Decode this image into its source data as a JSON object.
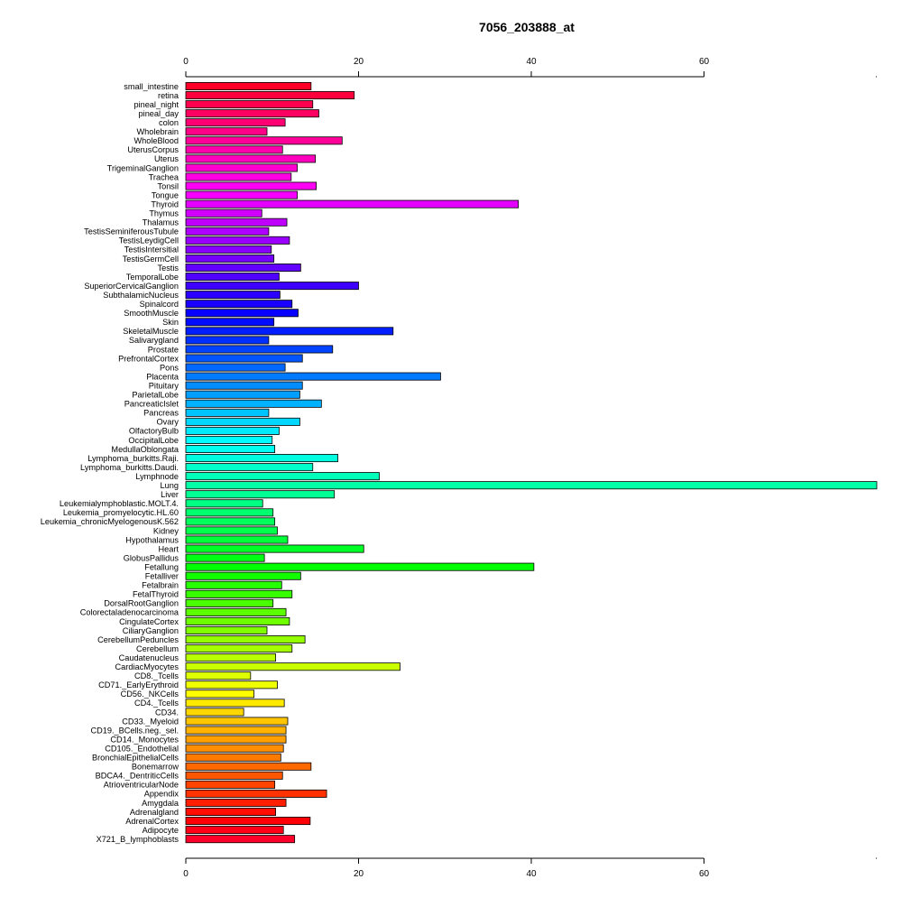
{
  "chart_data": {
    "type": "bar",
    "orientation": "horizontal",
    "title": "7056_203888_at",
    "xlabel": "",
    "ylabel": "",
    "xlim": [
      0,
      80
    ],
    "x_ticks": [
      0,
      20,
      40,
      60
    ],
    "x_tick_labels": [
      "0",
      "20",
      "40",
      "60"
    ],
    "axes": [
      "top",
      "bottom"
    ],
    "grid": false,
    "legend": "none",
    "bar_outline_color": "#000000",
    "color_scheme": "rainbow (red to magenta to blue to cyan to green to yellow to red)",
    "categories": [
      "small_intestine",
      "retina",
      "pineal_night",
      "pineal_day",
      "colon",
      "Wholebrain",
      "WholeBlood",
      "UterusCorpus",
      "Uterus",
      "TrigeminalGanglion",
      "Trachea",
      "Tonsil",
      "Tongue",
      "Thyroid",
      "Thymus",
      "Thalamus",
      "TestisSeminiferousTubule",
      "TestisLeydigCell",
      "TestisIntersitial",
      "TestisGermCell",
      "Testis",
      "TemporalLobe",
      "SuperiorCervicalGanglion",
      "SubthalamicNucleus",
      "Spinalcord",
      "SmoothMuscle",
      "Skin",
      "SkeletalMuscle",
      "Salivarygland",
      "Prostate",
      "PrefrontalCortex",
      "Pons",
      "Placenta",
      "Pituitary",
      "ParietalLobe",
      "PancreaticIslet",
      "Pancreas",
      "Ovary",
      "OlfactoryBulb",
      "OccipitalLobe",
      "MedullaOblongata",
      "Lymphoma_burkitts.Raji.",
      "Lymphoma_burkitts.Daudi.",
      "Lymphnode",
      "Lung",
      "Liver",
      "Leukemialymphoblastic.MOLT.4.",
      "Leukemia_promyelocytic.HL.60",
      "Leukemia_chronicMyelogenousK.562",
      "Kidney",
      "Hypothalamus",
      "Heart",
      "GlobusPallidus",
      "Fetallung",
      "Fetalliver",
      "Fetalbrain",
      "FetalThyroid",
      "DorsalRootGanglion",
      "Colorectaladenocarcinoma",
      "CingulateCortex",
      "CiliaryGanglion",
      "CerebellumPeduncles",
      "Cerebellum",
      "Caudatenucleus",
      "CardiacMyocytes",
      "CD8._Tcells",
      "CD71._EarlyErythroid",
      "CD56._NKCells",
      "CD4._Tcells",
      "CD34.",
      "CD33._Myeloid",
      "CD19._BCells.neg._sel.",
      "CD14._Monocytes",
      "CD105._Endothelial",
      "BronchialEpithelialCells",
      "Bonemarrow",
      "BDCA4._DentriticCells",
      "AtrioventricularNode",
      "Appendix",
      "Amygdala",
      "Adrenalgland",
      "AdrenalCortex",
      "Adipocyte",
      "X721_B_lymphoblasts"
    ],
    "values": [
      14.5,
      19.5,
      14.7,
      15.4,
      11.5,
      9.4,
      18.1,
      11.2,
      15.0,
      12.9,
      12.2,
      15.1,
      12.9,
      38.5,
      8.8,
      11.7,
      9.6,
      12.0,
      9.9,
      10.2,
      13.3,
      10.8,
      20.0,
      10.9,
      12.3,
      13.0,
      10.2,
      24.0,
      9.6,
      17.0,
      13.5,
      11.5,
      29.5,
      13.5,
      13.2,
      15.7,
      9.6,
      13.2,
      10.8,
      10.0,
      10.3,
      17.6,
      14.7,
      22.4,
      80.0,
      17.2,
      8.9,
      10.1,
      10.3,
      10.6,
      11.8,
      20.6,
      9.1,
      40.3,
      13.3,
      11.1,
      12.3,
      10.1,
      11.6,
      12.0,
      9.4,
      13.8,
      12.3,
      10.4,
      24.8,
      7.5,
      10.6,
      7.9,
      11.4,
      6.7,
      11.8,
      11.6,
      11.6,
      11.3,
      11.0,
      14.5,
      11.2,
      10.3,
      16.3,
      11.6,
      10.4,
      14.4,
      11.3,
      12.6
    ]
  }
}
